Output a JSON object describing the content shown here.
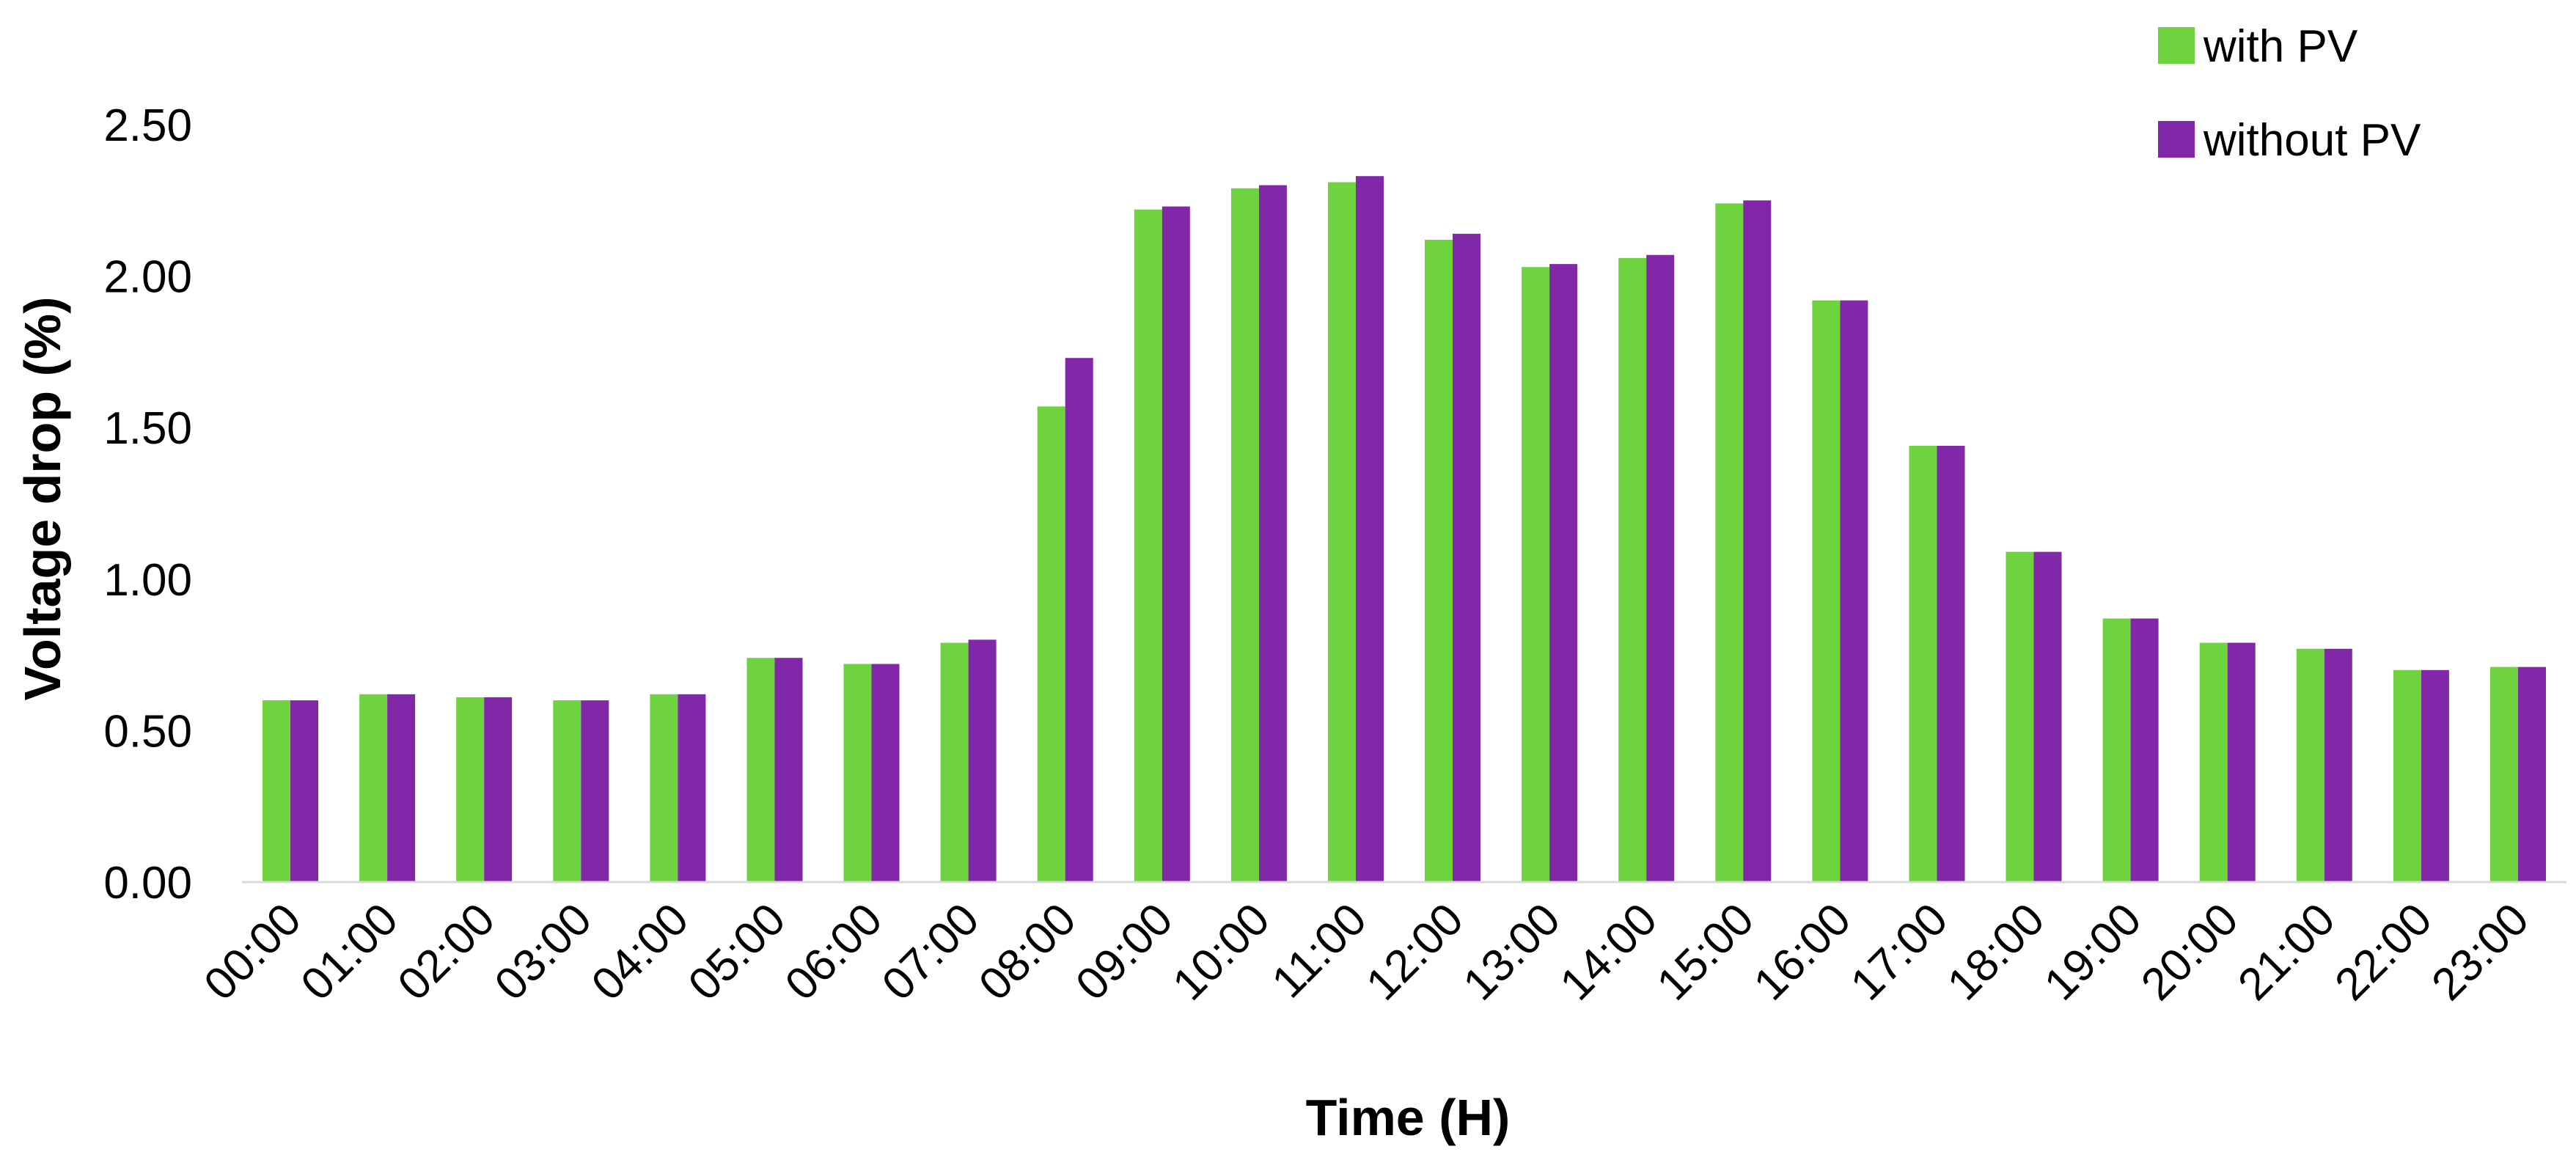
{
  "chart_data": {
    "type": "bar",
    "title": "",
    "xlabel": "Time (H)",
    "ylabel": "Voltage drop (%)",
    "ylim": [
      0,
      2.5
    ],
    "yticks": [
      "0.00",
      "0.50",
      "1.00",
      "1.50",
      "2.00",
      "2.50"
    ],
    "grid": false,
    "legend_position": "top-right",
    "categories": [
      "00:00",
      "01:00",
      "02:00",
      "03:00",
      "04:00",
      "05:00",
      "06:00",
      "07:00",
      "08:00",
      "09:00",
      "10:00",
      "11:00",
      "12:00",
      "13:00",
      "14:00",
      "15:00",
      "16:00",
      "17:00",
      "18:00",
      "19:00",
      "20:00",
      "21:00",
      "22:00",
      "23:00"
    ],
    "series": [
      {
        "name": "with PV",
        "color": "#6fd23f",
        "values": [
          0.6,
          0.62,
          0.61,
          0.6,
          0.62,
          0.74,
          0.72,
          0.79,
          1.57,
          2.22,
          2.29,
          2.31,
          2.12,
          2.03,
          2.06,
          2.24,
          1.92,
          1.44,
          1.09,
          0.87,
          0.79,
          0.77,
          0.7,
          0.71
        ]
      },
      {
        "name": "without PV",
        "color": "#8128a8",
        "values": [
          0.6,
          0.62,
          0.61,
          0.6,
          0.62,
          0.74,
          0.72,
          0.8,
          1.73,
          2.23,
          2.3,
          2.33,
          2.14,
          2.04,
          2.07,
          2.25,
          1.92,
          1.44,
          1.09,
          0.87,
          0.79,
          0.77,
          0.7,
          0.71
        ]
      }
    ]
  }
}
